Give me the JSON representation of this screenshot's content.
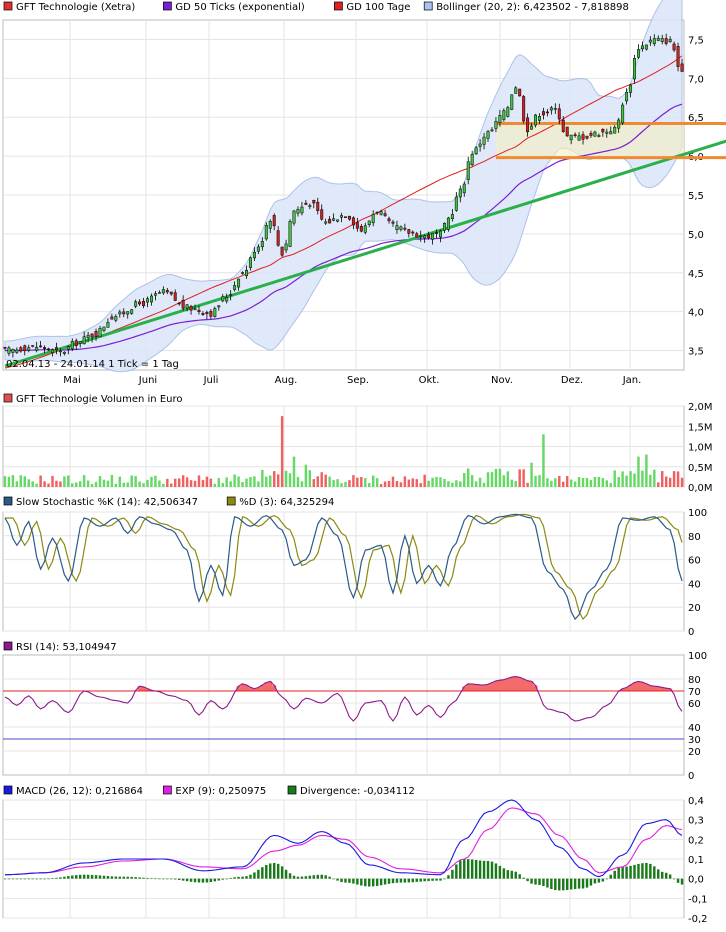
{
  "chart_data": [
    {
      "type": "candlestick",
      "panel": "price",
      "legend": [
        {
          "label": "GFT Technologie (Xetra)",
          "color": "#e03030"
        },
        {
          "label": "GD 50 Ticks (exponential)",
          "color": "#7b1fd4"
        },
        {
          "label": "GD 100 Tage",
          "color": "#e02020"
        },
        {
          "label": "Bollinger (20, 2): 6,423502 - 7,818898",
          "color": "#a9c4ee"
        }
      ],
      "date_range_text": "02.04.13 - 24.01.14   1 Tick = 1 Tag",
      "month_labels": [
        "Mai",
        "Juni",
        "Juli",
        "Aug.",
        "Sep.",
        "Okt.",
        "Nov.",
        "Dez.",
        "Jan."
      ],
      "yticks": [
        "3,5",
        "4,0",
        "4,5",
        "5,0",
        "5,5",
        "6,0",
        "6,5",
        "7,0",
        "7,5"
      ],
      "ylim": [
        3.25,
        7.75
      ],
      "close_anchors": [
        [
          0,
          3.5
        ],
        [
          8,
          3.55
        ],
        [
          14,
          3.48
        ],
        [
          18,
          3.6
        ],
        [
          22,
          3.7
        ],
        [
          28,
          3.95
        ],
        [
          34,
          4.1
        ],
        [
          40,
          4.25
        ],
        [
          46,
          4.05
        ],
        [
          52,
          3.98
        ],
        [
          56,
          4.2
        ],
        [
          60,
          4.5
        ],
        [
          64,
          4.85
        ],
        [
          67,
          5.2
        ],
        [
          70,
          4.75
        ],
        [
          73,
          5.3
        ],
        [
          77,
          5.4
        ],
        [
          81,
          5.15
        ],
        [
          86,
          5.25
        ],
        [
          90,
          5.05
        ],
        [
          94,
          5.3
        ],
        [
          98,
          5.1
        ],
        [
          102,
          5.02
        ],
        [
          106,
          4.97
        ],
        [
          110,
          5.0
        ],
        [
          112,
          5.2
        ],
        [
          115,
          5.55
        ],
        [
          118,
          6.05
        ],
        [
          122,
          6.3
        ],
        [
          126,
          6.55
        ],
        [
          129,
          6.9
        ],
        [
          132,
          6.35
        ],
        [
          135,
          6.55
        ],
        [
          139,
          6.6
        ],
        [
          142,
          6.25
        ],
        [
          146,
          6.25
        ],
        [
          150,
          6.3
        ],
        [
          154,
          6.35
        ],
        [
          157,
          6.8
        ],
        [
          160,
          7.4
        ],
        [
          164,
          7.5
        ],
        [
          168,
          7.48
        ],
        [
          171,
          7.05
        ]
      ],
      "bollinger_text": "6,423502 - 7,818898",
      "trendline": {
        "from": [
          0,
          3.3
        ],
        "to": [
          171,
          6.05
        ],
        "color": "#2ab04a"
      },
      "zone": {
        "top": 6.42,
        "bottom": 5.98,
        "color": "#f08a30"
      }
    },
    {
      "type": "bar",
      "panel": "volume",
      "legend": [
        {
          "label": "GFT Technologie Volumen in Euro",
          "color": "#e05050"
        }
      ],
      "yticks": [
        "0,0M",
        "0,5M",
        "1,0M",
        "1,5M",
        "2,0M"
      ],
      "ylim": [
        0,
        2.0
      ],
      "spikes": [
        [
          70,
          1.75
        ],
        [
          73,
          0.75
        ],
        [
          76,
          0.55
        ],
        [
          136,
          1.3
        ],
        [
          133,
          0.6
        ],
        [
          160,
          0.75
        ],
        [
          162,
          0.8
        ]
      ],
      "base_level": 0.22
    },
    {
      "type": "line",
      "panel": "stochastic",
      "legend": [
        {
          "label": "Slow Stochastic %K (14): 42,506347",
          "color": "#2a5a88"
        },
        {
          "label": "%D (3): 64,325294",
          "color": "#8a8a10"
        }
      ],
      "yticks": [
        "0",
        "20",
        "40",
        "60",
        "80",
        "100"
      ],
      "ylim": [
        0,
        100
      ],
      "k_anchors": [
        [
          0,
          95
        ],
        [
          3,
          72
        ],
        [
          6,
          92
        ],
        [
          9,
          52
        ],
        [
          12,
          78
        ],
        [
          16,
          42
        ],
        [
          20,
          95
        ],
        [
          24,
          88
        ],
        [
          28,
          95
        ],
        [
          31,
          82
        ],
        [
          34,
          96
        ],
        [
          38,
          90
        ],
        [
          42,
          85
        ],
        [
          46,
          68
        ],
        [
          49,
          25
        ],
        [
          52,
          55
        ],
        [
          55,
          30
        ],
        [
          58,
          96
        ],
        [
          62,
          88
        ],
        [
          66,
          97
        ],
        [
          70,
          85
        ],
        [
          73,
          55
        ],
        [
          76,
          60
        ],
        [
          80,
          95
        ],
        [
          84,
          80
        ],
        [
          88,
          28
        ],
        [
          91,
          68
        ],
        [
          95,
          72
        ],
        [
          98,
          32
        ],
        [
          101,
          80
        ],
        [
          104,
          40
        ],
        [
          107,
          55
        ],
        [
          110,
          38
        ],
        [
          113,
          70
        ],
        [
          117,
          97
        ],
        [
          121,
          90
        ],
        [
          125,
          96
        ],
        [
          129,
          98
        ],
        [
          133,
          95
        ],
        [
          137,
          50
        ],
        [
          141,
          35
        ],
        [
          144,
          10
        ],
        [
          148,
          35
        ],
        [
          152,
          52
        ],
        [
          156,
          95
        ],
        [
          160,
          93
        ],
        [
          164,
          96
        ],
        [
          168,
          85
        ],
        [
          171,
          42
        ]
      ],
      "d_anchors_offset": 2
    },
    {
      "type": "line",
      "panel": "rsi",
      "legend": [
        {
          "label": "RSI (14): 53,104947",
          "color": "#8b1a8b"
        }
      ],
      "yticks": [
        "0",
        "20",
        "30",
        "40",
        "60",
        "70",
        "80",
        "100"
      ],
      "ylim": [
        0,
        100
      ],
      "overbought": 70,
      "oversold": 30,
      "anchors": [
        [
          0,
          65
        ],
        [
          3,
          58
        ],
        [
          6,
          66
        ],
        [
          9,
          55
        ],
        [
          12,
          62
        ],
        [
          16,
          52
        ],
        [
          20,
          70
        ],
        [
          24,
          65
        ],
        [
          28,
          62
        ],
        [
          31,
          60
        ],
        [
          34,
          74
        ],
        [
          38,
          70
        ],
        [
          42,
          66
        ],
        [
          46,
          62
        ],
        [
          49,
          50
        ],
        [
          52,
          62
        ],
        [
          55,
          55
        ],
        [
          60,
          76
        ],
        [
          63,
          72
        ],
        [
          67,
          78
        ],
        [
          70,
          65
        ],
        [
          73,
          55
        ],
        [
          76,
          64
        ],
        [
          80,
          60
        ],
        [
          84,
          68
        ],
        [
          88,
          45
        ],
        [
          91,
          60
        ],
        [
          95,
          62
        ],
        [
          98,
          45
        ],
        [
          101,
          65
        ],
        [
          104,
          50
        ],
        [
          107,
          58
        ],
        [
          110,
          48
        ],
        [
          113,
          60
        ],
        [
          117,
          76
        ],
        [
          121,
          75
        ],
        [
          125,
          79
        ],
        [
          129,
          82
        ],
        [
          133,
          78
        ],
        [
          137,
          55
        ],
        [
          141,
          52
        ],
        [
          144,
          45
        ],
        [
          148,
          48
        ],
        [
          152,
          58
        ],
        [
          156,
          72
        ],
        [
          160,
          78
        ],
        [
          164,
          74
        ],
        [
          168,
          72
        ],
        [
          171,
          53
        ]
      ]
    },
    {
      "type": "line",
      "panel": "macd",
      "legend": [
        {
          "label": "MACD (26, 12): 0,216864",
          "color": "#1a1ae0"
        },
        {
          "label": "EXP (9): 0,250975",
          "color": "#e020e0"
        },
        {
          "label": "Divergence: -0,034112",
          "color": "#1a7a1a"
        }
      ],
      "yticks": [
        "-0,2",
        "-0,1",
        "0,0",
        "0,1",
        "0,2",
        "0,3",
        "0,4"
      ],
      "ylim": [
        -0.2,
        0.4
      ],
      "macd_anchors": [
        [
          0,
          0.02
        ],
        [
          10,
          0.03
        ],
        [
          20,
          0.08
        ],
        [
          30,
          0.1
        ],
        [
          40,
          0.1
        ],
        [
          50,
          0.04
        ],
        [
          60,
          0.06
        ],
        [
          68,
          0.22
        ],
        [
          74,
          0.18
        ],
        [
          80,
          0.24
        ],
        [
          86,
          0.18
        ],
        [
          92,
          0.07
        ],
        [
          100,
          0.03
        ],
        [
          110,
          0.02
        ],
        [
          116,
          0.2
        ],
        [
          122,
          0.34
        ],
        [
          128,
          0.4
        ],
        [
          134,
          0.3
        ],
        [
          140,
          0.16
        ],
        [
          146,
          0.05
        ],
        [
          150,
          0.01
        ],
        [
          156,
          0.12
        ],
        [
          162,
          0.28
        ],
        [
          167,
          0.3
        ],
        [
          171,
          0.22
        ]
      ],
      "exp_anchors": [
        [
          0,
          0.02
        ],
        [
          10,
          0.03
        ],
        [
          20,
          0.06
        ],
        [
          30,
          0.09
        ],
        [
          40,
          0.1
        ],
        [
          50,
          0.06
        ],
        [
          60,
          0.05
        ],
        [
          68,
          0.14
        ],
        [
          74,
          0.17
        ],
        [
          80,
          0.22
        ],
        [
          86,
          0.2
        ],
        [
          92,
          0.11
        ],
        [
          100,
          0.05
        ],
        [
          110,
          0.03
        ],
        [
          116,
          0.1
        ],
        [
          122,
          0.25
        ],
        [
          128,
          0.36
        ],
        [
          134,
          0.33
        ],
        [
          140,
          0.22
        ],
        [
          146,
          0.1
        ],
        [
          150,
          0.03
        ],
        [
          156,
          0.06
        ],
        [
          162,
          0.2
        ],
        [
          167,
          0.27
        ],
        [
          171,
          0.25
        ]
      ]
    }
  ]
}
